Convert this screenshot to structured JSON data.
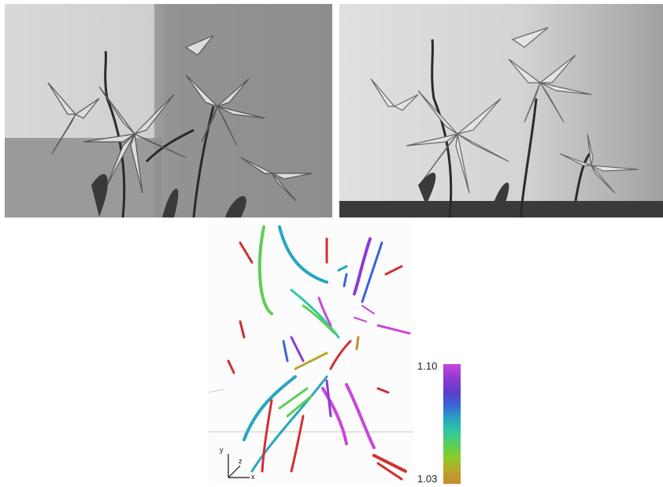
{
  "photos": [
    {
      "view": "left",
      "subject": "lily-flowers",
      "style": "grayscale"
    },
    {
      "view": "right",
      "subject": "lily-flowers",
      "style": "grayscale"
    }
  ],
  "reconstruction": {
    "axes": {
      "x": "x",
      "y": "y",
      "z": "z"
    }
  },
  "colorbar": {
    "max_label": "1.10",
    "min_label": "1.03",
    "colors": [
      "#c848d8",
      "#8d3ad4",
      "#3a63d8",
      "#26a6c0",
      "#5ccf55",
      "#b6a82a",
      "#c88a30"
    ]
  }
}
